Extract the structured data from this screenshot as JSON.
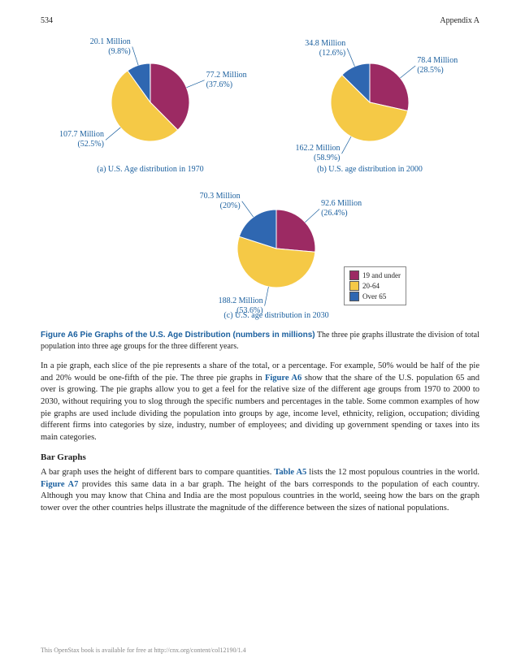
{
  "header": {
    "page_num": "534",
    "section": "Appendix A"
  },
  "colors": {
    "under19": "#9c2a63",
    "mid": "#f5c946",
    "over65": "#2f67b1",
    "label": "#1a5f9e",
    "stroke": "#ffffff"
  },
  "charts": {
    "pie_radius": 48,
    "a": {
      "caption": "(a) U.S. Age distribution in 1970",
      "slices": [
        {
          "key": "under19",
          "value": 37.6,
          "label_top": "77.2 Million",
          "label_bot": "(37.6%)"
        },
        {
          "key": "mid",
          "value": 52.5,
          "label_top": "107.7 Million",
          "label_bot": "(52.5%)"
        },
        {
          "key": "over65",
          "value": 9.8,
          "label_top": "20.1 Million",
          "label_bot": "(9.8%)"
        }
      ]
    },
    "b": {
      "caption": "(b) U.S. age distribution in 2000",
      "slices": [
        {
          "key": "under19",
          "value": 28.5,
          "label_top": "78.4 Million",
          "label_bot": "(28.5%)"
        },
        {
          "key": "mid",
          "value": 58.9,
          "label_top": "162.2 Million",
          "label_bot": "(58.9%)"
        },
        {
          "key": "over65",
          "value": 12.6,
          "label_top": "34.8 Million",
          "label_bot": "(12.6%)"
        }
      ]
    },
    "c": {
      "caption": "(c) U.S. age distribution in 2030",
      "slices": [
        {
          "key": "under19",
          "value": 26.4,
          "label_top": "92.6 Million",
          "label_bot": "(26.4%)"
        },
        {
          "key": "mid",
          "value": 53.6,
          "label_top": "188.2 Million",
          "label_bot": "(53.6%)"
        },
        {
          "key": "over65",
          "value": 20.0,
          "label_top": "70.3 Million",
          "label_bot": "(20%)"
        }
      ]
    }
  },
  "legend": [
    {
      "key": "under19",
      "text": "19 and under"
    },
    {
      "key": "mid",
      "text": "20-64"
    },
    {
      "key": "over65",
      "text": "Over 65"
    }
  ],
  "figure_caption": {
    "bold": "Figure A6 Pie Graphs of the U.S. Age Distribution (numbers in millions)",
    "rest": "   The three pie graphs illustrate the division of total population into three age groups for the three different years."
  },
  "para1_a": "In a pie graph, each slice of the pie represents a share of the total, or a percentage. For example, 50% would be half of the pie and 20% would be one-fifth of the pie. The three pie graphs in ",
  "para1_link": "Figure A6",
  "para1_b": " show that the share of the U.S. population 65 and over is growing. The pie graphs allow you to get a feel for the relative size of the different age groups from 1970 to 2000 to 2030, without requiring you to slog through the specific numbers and percentages in the table. Some common examples of how pie graphs are used include dividing the population into groups by age, income level, ethnicity, religion, occupation; dividing different firms into categories by size, industry, number of employees; and dividing up government spending or taxes into its main categories.",
  "section_head": "Bar Graphs",
  "para2_a": "A bar graph uses the height of different bars to compare quantities. ",
  "para2_link1": "Table A5",
  "para2_b": " lists the 12 most populous countries in the world. ",
  "para2_link2": "Figure A7",
  "para2_c": " provides this same data in a bar graph. The height of the bars corresponds to the population of each country. Although you may know that China and India are the most populous countries in the world, seeing how the bars on the graph tower over the other countries helps illustrate the magnitude of the difference between the sizes of national populations.",
  "footer": "This OpenStax book is available for free at http://cnx.org/content/col12190/1.4"
}
